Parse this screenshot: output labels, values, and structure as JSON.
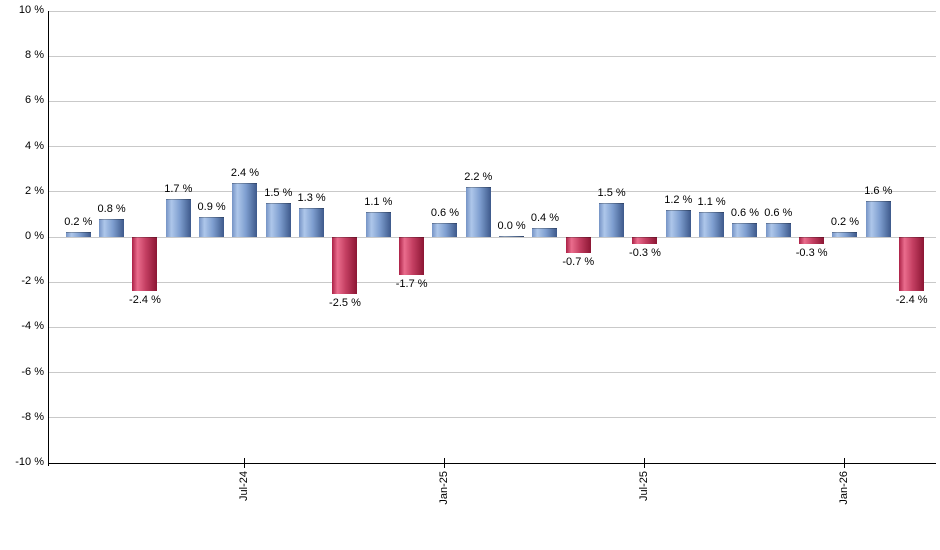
{
  "chart_data": {
    "type": "bar",
    "title": "",
    "xlabel": "",
    "ylabel": "",
    "ylim": [
      -10,
      10
    ],
    "grid": true,
    "legend": "none",
    "y_tick_labels": [
      "10 %",
      "8 %",
      "6 %",
      "4 %",
      "2 %",
      "0 %",
      "-2 %",
      "-4 %",
      "-6 %",
      "-8 %",
      "-10 %"
    ],
    "y_tick_values": [
      10,
      8,
      6,
      4,
      2,
      0,
      -2,
      -4,
      -6,
      -8,
      -10
    ],
    "x_ticks": [
      {
        "label": "Jul-24",
        "bar_index": 5
      },
      {
        "label": "Jan-25",
        "bar_index": 11
      },
      {
        "label": "Jul-25",
        "bar_index": 17
      },
      {
        "label": "Jan-26",
        "bar_index": 23
      }
    ],
    "values": [
      0.2,
      0.8,
      -2.4,
      1.7,
      0.9,
      2.4,
      1.5,
      1.3,
      -2.5,
      1.1,
      -1.7,
      0.6,
      2.2,
      0.0,
      0.4,
      -0.7,
      1.5,
      -0.3,
      1.2,
      1.1,
      0.6,
      0.6,
      -0.3,
      0.2,
      1.6,
      -2.4
    ],
    "value_labels": [
      "0.2 %",
      "0.8 %",
      "-2.4 %",
      "1.7 %",
      "0.9 %",
      "2.4 %",
      "1.5 %",
      "1.3 %",
      "-2.5 %",
      "1.1 %",
      "-1.7 %",
      "0.6 %",
      "2.2 %",
      "0.0 %",
      "0.4 %",
      "-0.7 %",
      "1.5 %",
      "-0.3 %",
      "1.2 %",
      "1.1 %",
      "0.6 %",
      "0.6 %",
      "-0.3 %",
      "0.2 %",
      "1.6 %",
      "-2.4 %"
    ],
    "colors": {
      "positive_bar_gradient": [
        "#7593c5",
        "#aec7ea",
        "#7f9fd0",
        "#3d598b"
      ],
      "negative_bar_gradient": [
        "#aa2045",
        "#ea6d8d",
        "#c43f62",
        "#8c1634"
      ],
      "gridline": "#c9c9c9",
      "axis": "#000000",
      "text": "#000000",
      "background": "#ffffff"
    }
  }
}
